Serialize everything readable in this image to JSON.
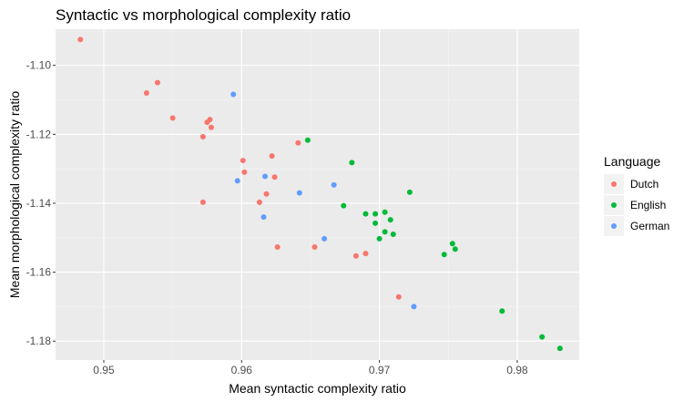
{
  "chart_data": {
    "type": "scatter",
    "title": "Syntactic vs morphological complexity ratio",
    "xlabel": "Mean syntactic complexity ratio",
    "ylabel": "Mean morphological complexity ratio",
    "xlim": [
      0.9465,
      0.9845
    ],
    "ylim": [
      -1.1855,
      -1.0895
    ],
    "xticks": [
      0.95,
      0.96,
      0.97,
      0.98
    ],
    "xtick_labels": [
      "0.95",
      "0.96",
      "0.97",
      "0.98"
    ],
    "yticks": [
      -1.1,
      -1.12,
      -1.14,
      -1.16,
      -1.18
    ],
    "ytick_labels": [
      "-1.10",
      "-1.12",
      "-1.14",
      "-1.16",
      "-1.18"
    ],
    "grid": true,
    "legend": {
      "title": "Language",
      "placement": "right"
    },
    "series": [
      {
        "name": "Dutch",
        "color": "#F8766D",
        "points": [
          [
            0.9483,
            -1.0925
          ],
          [
            0.9539,
            -1.105
          ],
          [
            0.9531,
            -1.108
          ],
          [
            0.955,
            -1.1153
          ],
          [
            0.9577,
            -1.1157
          ],
          [
            0.9575,
            -1.1165
          ],
          [
            0.9578,
            -1.118
          ],
          [
            0.9572,
            -1.1207
          ],
          [
            0.9572,
            -1.1397
          ],
          [
            0.9601,
            -1.1276
          ],
          [
            0.9602,
            -1.131
          ],
          [
            0.9622,
            -1.1263
          ],
          [
            0.9624,
            -1.1324
          ],
          [
            0.9618,
            -1.1373
          ],
          [
            0.9613,
            -1.1397
          ],
          [
            0.9626,
            -1.1527
          ],
          [
            0.9641,
            -1.1225
          ],
          [
            0.9653,
            -1.1527
          ],
          [
            0.9683,
            -1.1553
          ],
          [
            0.969,
            -1.1546
          ],
          [
            0.9714,
            -1.1672
          ]
        ]
      },
      {
        "name": "English",
        "color": "#00BA38",
        "points": [
          [
            0.9648,
            -1.1217
          ],
          [
            0.9674,
            -1.1407
          ],
          [
            0.968,
            -1.1282
          ],
          [
            0.969,
            -1.1431
          ],
          [
            0.9697,
            -1.1431
          ],
          [
            0.9697,
            -1.1458
          ],
          [
            0.97,
            -1.1503
          ],
          [
            0.9704,
            -1.1426
          ],
          [
            0.9704,
            -1.1483
          ],
          [
            0.9708,
            -1.1448
          ],
          [
            0.971,
            -1.149
          ],
          [
            0.9722,
            -1.1368
          ],
          [
            0.9747,
            -1.1549
          ],
          [
            0.9753,
            -1.1517
          ],
          [
            0.9755,
            -1.1533
          ],
          [
            0.9789,
            -1.1713
          ],
          [
            0.9818,
            -1.1788
          ],
          [
            0.9831,
            -1.1821
          ]
        ]
      },
      {
        "name": "German",
        "color": "#619CFF",
        "points": [
          [
            0.9594,
            -1.1084
          ],
          [
            0.9597,
            -1.1335
          ],
          [
            0.9616,
            -1.144
          ],
          [
            0.9617,
            -1.1322
          ],
          [
            0.9642,
            -1.137
          ],
          [
            0.966,
            -1.1503
          ],
          [
            0.9667,
            -1.1347
          ],
          [
            0.9725,
            -1.17
          ]
        ]
      }
    ]
  }
}
